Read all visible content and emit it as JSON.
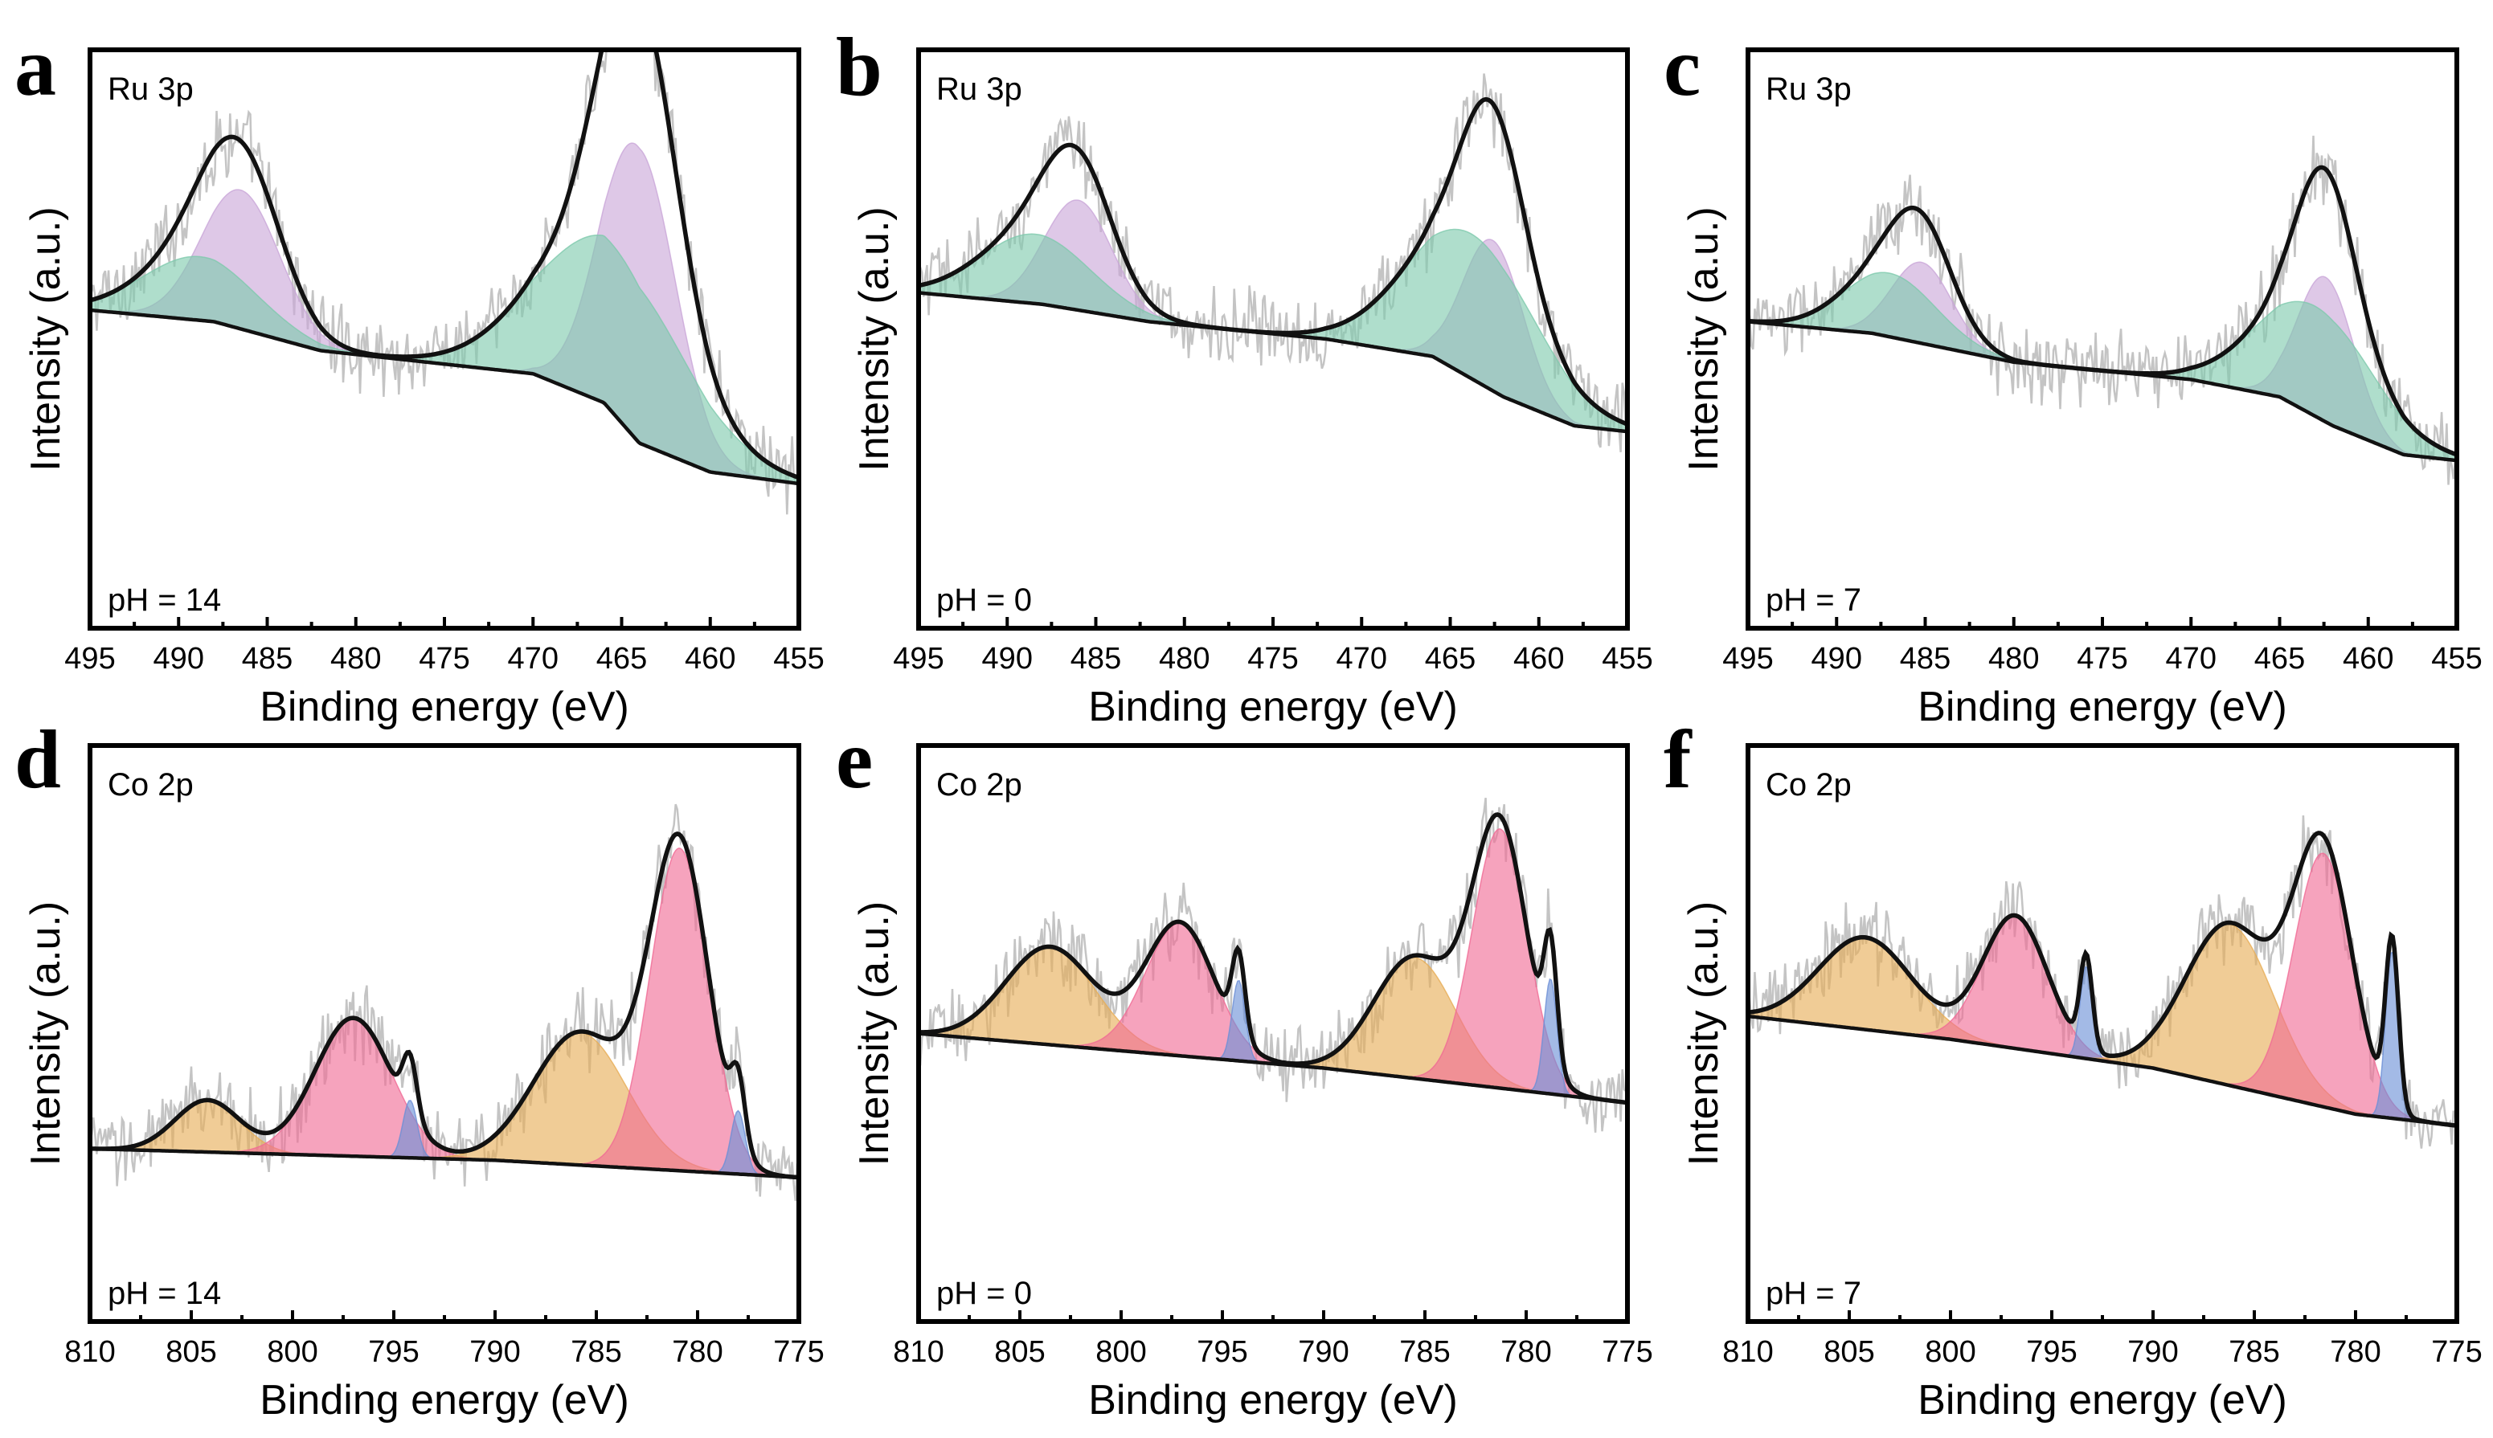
{
  "figure": {
    "colors": {
      "raw": "#c4c4c4",
      "envelope": "#111111",
      "background": "#111111",
      "Ru_a": "#c9a6d8",
      "Ru_b": "#7ec9ad",
      "Co_main": "#f06a95",
      "Co_sat": "#e7ad55",
      "Co_minor": "#6b8fd6"
    }
  },
  "chart_data": [
    {
      "panel": "a",
      "type": "line",
      "title": "Ru 3p",
      "annotation": "pH = 14",
      "xlabel": "Binding energy (eV)",
      "ylabel": "Intensity (a.u.)",
      "xlim": [
        495,
        455
      ],
      "xticks": [
        "495",
        "490",
        "485",
        "480",
        "475",
        "470",
        "465",
        "460",
        "455"
      ],
      "ylim": [
        0,
        1
      ],
      "background": [
        [
          495,
          0.55
        ],
        [
          488,
          0.53
        ],
        [
          482,
          0.48
        ],
        [
          470,
          0.44
        ],
        [
          466,
          0.39
        ],
        [
          464,
          0.32
        ],
        [
          460,
          0.27
        ],
        [
          455,
          0.25
        ]
      ],
      "peaks": [
        {
          "name": "Ru 3p1/2 (a)",
          "center": 486.5,
          "height": 0.24,
          "width": 2.2,
          "color": "#c9a6d8"
        },
        {
          "name": "Ru 3p1/2 (b)",
          "center": 488.8,
          "height": 0.11,
          "width": 3.2,
          "color": "#7ec9ad"
        },
        {
          "name": "Ru 3p3/2 (a)",
          "center": 464.1,
          "height": 0.51,
          "width": 2.1,
          "color": "#c9a6d8"
        },
        {
          "name": "Ru 3p3/2 (b)",
          "center": 465.6,
          "height": 0.29,
          "width": 4.1,
          "color": "#7ec9ad"
        }
      ]
    },
    {
      "panel": "b",
      "type": "line",
      "title": "Ru 3p",
      "annotation": "pH = 0",
      "xlabel": "Binding energy (eV)",
      "ylabel": "Intensity (a.u.)",
      "xlim": [
        495,
        455
      ],
      "xticks": [
        "495",
        "490",
        "485",
        "480",
        "475",
        "470",
        "465",
        "460",
        "455"
      ],
      "ylim": [
        0,
        1
      ],
      "background": [
        [
          495,
          0.58
        ],
        [
          488,
          0.56
        ],
        [
          482,
          0.53
        ],
        [
          472,
          0.5
        ],
        [
          466,
          0.47
        ],
        [
          462,
          0.4
        ],
        [
          458,
          0.35
        ],
        [
          455,
          0.34
        ]
      ],
      "peaks": [
        {
          "name": "Ru 3p1/2 (a)",
          "center": 486.0,
          "height": 0.19,
          "width": 1.9,
          "color": "#c9a6d8"
        },
        {
          "name": "Ru 3p1/2 (b)",
          "center": 488.4,
          "height": 0.12,
          "width": 3.1,
          "color": "#7ec9ad"
        },
        {
          "name": "Ru 3p3/2 (a)",
          "center": 462.6,
          "height": 0.26,
          "width": 1.7,
          "color": "#c9a6d8"
        },
        {
          "name": "Ru 3p3/2 (b)",
          "center": 463.8,
          "height": 0.25,
          "width": 3.6,
          "color": "#7ec9ad"
        }
      ]
    },
    {
      "panel": "c",
      "type": "line",
      "title": "Ru 3p",
      "annotation": "pH = 7",
      "xlabel": "Binding energy (eV)",
      "ylabel": "Intensity (a.u.)",
      "xlim": [
        495,
        455
      ],
      "xticks": [
        "495",
        "490",
        "485",
        "480",
        "475",
        "470",
        "465",
        "460",
        "455"
      ],
      "ylim": [
        0,
        1
      ],
      "background": [
        [
          495,
          0.53
        ],
        [
          488,
          0.51
        ],
        [
          480,
          0.46
        ],
        [
          470,
          0.43
        ],
        [
          465,
          0.4
        ],
        [
          462,
          0.35
        ],
        [
          458,
          0.3
        ],
        [
          455,
          0.29
        ]
      ],
      "peaks": [
        {
          "name": "Ru 3p1/2 (a)",
          "center": 485.2,
          "height": 0.14,
          "width": 1.7,
          "color": "#c9a6d8"
        },
        {
          "name": "Ru 3p1/2 (b)",
          "center": 487.0,
          "height": 0.11,
          "width": 2.6,
          "color": "#7ec9ad"
        },
        {
          "name": "Ru 3p3/2 (a)",
          "center": 462.4,
          "height": 0.25,
          "width": 1.6,
          "color": "#c9a6d8"
        },
        {
          "name": "Ru 3p3/2 (b)",
          "center": 463.0,
          "height": 0.19,
          "width": 3.3,
          "color": "#7ec9ad"
        }
      ]
    },
    {
      "panel": "d",
      "type": "line",
      "title": "Co 2p",
      "annotation": "pH = 14",
      "xlabel": "Binding energy (eV)",
      "ylabel": "Intensity (a.u.)",
      "xlim": [
        810,
        775
      ],
      "xticks": [
        "810",
        "805",
        "800",
        "795",
        "790",
        "785",
        "780",
        "775"
      ],
      "ylim": [
        0,
        1
      ],
      "background": [
        [
          810,
          0.3
        ],
        [
          800,
          0.29
        ],
        [
          790,
          0.28
        ],
        [
          780,
          0.26
        ],
        [
          775,
          0.25
        ]
      ],
      "peaks": [
        {
          "name": "Co 2p1/2 satellite",
          "center": 804.2,
          "height": 0.09,
          "width": 1.6,
          "color": "#e7ad55"
        },
        {
          "name": "Co 2p1/2",
          "center": 797.0,
          "height": 0.24,
          "width": 1.9,
          "color": "#f06a95"
        },
        {
          "name": "Co 2p1/2 minor",
          "center": 794.2,
          "height": 0.1,
          "width": 0.35,
          "color": "#6b8fd6"
        },
        {
          "name": "Co 2p3/2 satellite",
          "center": 785.8,
          "height": 0.23,
          "width": 2.3,
          "color": "#e7ad55"
        },
        {
          "name": "Co 2p3/2",
          "center": 780.9,
          "height": 0.56,
          "width": 1.45,
          "color": "#f06a95"
        },
        {
          "name": "Co 2p3/2 minor",
          "center": 778.0,
          "height": 0.11,
          "width": 0.35,
          "color": "#6b8fd6"
        }
      ]
    },
    {
      "panel": "e",
      "type": "line",
      "title": "Co 2p",
      "annotation": "pH = 0",
      "xlabel": "Binding energy (eV)",
      "ylabel": "Intensity (a.u.)",
      "xlim": [
        810,
        775
      ],
      "xticks": [
        "810",
        "805",
        "800",
        "795",
        "790",
        "785",
        "780",
        "775"
      ],
      "ylim": [
        0,
        1
      ],
      "background": [
        [
          810,
          0.5
        ],
        [
          800,
          0.47
        ],
        [
          790,
          0.44
        ],
        [
          780,
          0.4
        ],
        [
          775,
          0.38
        ]
      ],
      "peaks": [
        {
          "name": "Co 2p1/2 satellite",
          "center": 803.5,
          "height": 0.17,
          "width": 2.2,
          "color": "#e7ad55"
        },
        {
          "name": "Co 2p1/2",
          "center": 797.1,
          "height": 0.23,
          "width": 1.7,
          "color": "#f06a95"
        },
        {
          "name": "Co 2p1/2 minor",
          "center": 794.2,
          "height": 0.14,
          "width": 0.32,
          "color": "#6b8fd6"
        },
        {
          "name": "Co 2p3/2 satellite",
          "center": 785.5,
          "height": 0.21,
          "width": 2.0,
          "color": "#e7ad55"
        },
        {
          "name": "Co 2p3/2",
          "center": 781.3,
          "height": 0.45,
          "width": 1.35,
          "color": "#f06a95"
        },
        {
          "name": "Co 2p3/2 minor",
          "center": 778.8,
          "height": 0.2,
          "width": 0.32,
          "color": "#6b8fd6"
        }
      ]
    },
    {
      "panel": "f",
      "type": "line",
      "title": "Co 2p",
      "annotation": "pH = 7",
      "xlabel": "Binding energy (eV)",
      "ylabel": "Intensity (a.u.)",
      "xlim": [
        810,
        775
      ],
      "xticks": [
        "810",
        "805",
        "800",
        "795",
        "790",
        "785",
        "780",
        "775"
      ],
      "ylim": [
        0,
        1
      ],
      "background": [
        [
          810,
          0.53
        ],
        [
          800,
          0.49
        ],
        [
          790,
          0.44
        ],
        [
          780,
          0.36
        ],
        [
          775,
          0.34
        ]
      ],
      "peaks": [
        {
          "name": "Co 2p1/2 satellite",
          "center": 804.2,
          "height": 0.16,
          "width": 2.3,
          "color": "#e7ad55"
        },
        {
          "name": "Co 2p1/2",
          "center": 796.8,
          "height": 0.23,
          "width": 1.6,
          "color": "#f06a95"
        },
        {
          "name": "Co 2p1/2 minor",
          "center": 793.3,
          "height": 0.16,
          "width": 0.3,
          "color": "#6b8fd6"
        },
        {
          "name": "Co 2p3/2 satellite",
          "center": 786.2,
          "height": 0.28,
          "width": 2.2,
          "color": "#e7ad55"
        },
        {
          "name": "Co 2p3/2",
          "center": 781.6,
          "height": 0.44,
          "width": 1.45,
          "color": "#f06a95"
        },
        {
          "name": "Co 2p3/2 minor",
          "center": 778.2,
          "height": 0.29,
          "width": 0.32,
          "color": "#6b8fd6"
        }
      ]
    }
  ]
}
